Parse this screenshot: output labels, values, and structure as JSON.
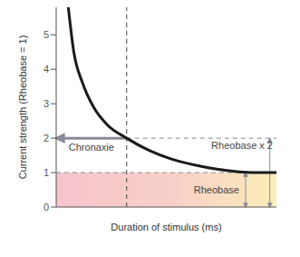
{
  "chart_data": {
    "type": "line",
    "x_label": "Duration of stimulus (ms)",
    "y_label": "Current strength (Rheobase = 1)",
    "x": [
      0.55,
      0.8,
      1.2,
      1.7,
      2.3,
      3.2,
      4.2,
      5.2,
      6.3,
      7.3,
      8.2,
      9.0,
      10.0
    ],
    "values": [
      5.8,
      4.5,
      3.6,
      2.9,
      2.4,
      2.0,
      1.65,
      1.4,
      1.22,
      1.1,
      1.03,
      1.0,
      1.0
    ],
    "color": "#1a1a1a",
    "xlim": [
      0,
      10
    ],
    "ylim": [
      0,
      5.8
    ],
    "yticks": [
      0,
      1,
      2,
      3,
      4,
      5
    ],
    "tick_labels": "y",
    "grid": false,
    "annotations": [
      {
        "text": "Rheobase x 2",
        "y": 2
      },
      {
        "text": "Chronaxie",
        "x": 3.2,
        "y": 2
      },
      {
        "text": "Rheobase",
        "y": 1
      }
    ]
  }
}
